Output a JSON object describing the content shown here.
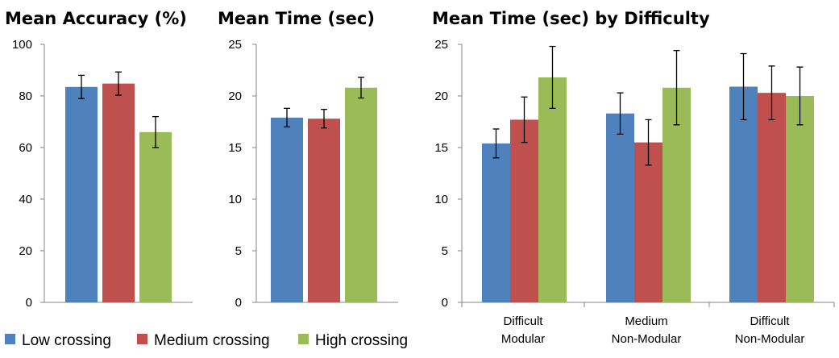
{
  "chart_data": [
    {
      "type": "bar",
      "title": "Mean Accuracy (%)",
      "categories": [
        ""
      ],
      "ylim": [
        0,
        100
      ],
      "yticks": [
        "0",
        "20",
        "40",
        "60",
        "80",
        "100"
      ],
      "series": [
        {
          "name": "Low crossing",
          "values": [
            83.5
          ],
          "error": [
            4.5
          ]
        },
        {
          "name": "Medium crossing",
          "values": [
            84.8
          ],
          "error": [
            4.5
          ]
        },
        {
          "name": "High crossing",
          "values": [
            66
          ],
          "error": [
            6
          ]
        }
      ]
    },
    {
      "type": "bar",
      "title": "Mean Time (sec)",
      "categories": [
        ""
      ],
      "ylim": [
        0,
        25
      ],
      "yticks": [
        "0",
        "5",
        "10",
        "15",
        "20",
        "25"
      ],
      "series": [
        {
          "name": "Low crossing",
          "values": [
            17.9
          ],
          "error": [
            0.9
          ]
        },
        {
          "name": "Medium crossing",
          "values": [
            17.8
          ],
          "error": [
            0.9
          ]
        },
        {
          "name": "High crossing",
          "values": [
            20.8
          ],
          "error": [
            1.0
          ]
        }
      ]
    },
    {
      "type": "bar",
      "title": "Mean Time (sec) by Difficulty",
      "categories": [
        [
          "Difficult",
          "Modular"
        ],
        [
          "Medium",
          "Non-Modular"
        ],
        [
          "Difficult",
          "Non-Modular"
        ]
      ],
      "ylim": [
        0,
        25
      ],
      "yticks": [
        "0",
        "5",
        "10",
        "15",
        "20",
        "25"
      ],
      "series": [
        {
          "name": "Low crossing",
          "values": [
            15.4,
            18.3,
            20.9
          ],
          "error": [
            1.4,
            2.0,
            3.2
          ]
        },
        {
          "name": "Medium crossing",
          "values": [
            17.7,
            15.5,
            20.3
          ],
          "error": [
            2.2,
            2.2,
            2.6
          ]
        },
        {
          "name": "High crossing",
          "values": [
            21.8,
            20.8,
            20.0
          ],
          "error": [
            3.0,
            3.6,
            2.8
          ]
        }
      ]
    }
  ],
  "legend": {
    "position": "bottom-left",
    "items": [
      {
        "label": "Low crossing",
        "color": "#4F81BD"
      },
      {
        "label": "Medium crossing",
        "color": "#C0504D"
      },
      {
        "label": "High crossing",
        "color": "#9BBB59"
      }
    ]
  }
}
